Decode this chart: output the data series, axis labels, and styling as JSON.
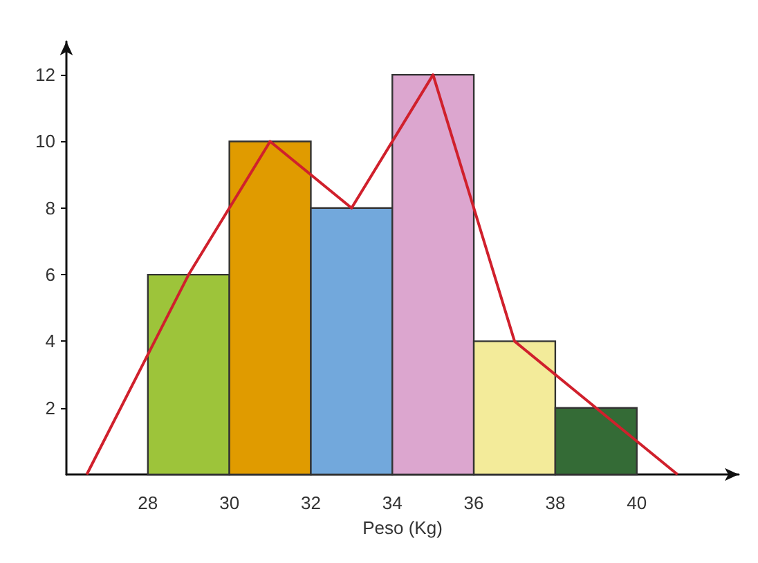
{
  "chart_data": {
    "type": "histogram",
    "xlabel": "Peso (Kg)",
    "bins": [
      28,
      30,
      32,
      34,
      36,
      38,
      40
    ],
    "values": [
      6,
      10,
      8,
      12,
      4,
      2
    ],
    "colors": [
      "#9dc43a",
      "#e09b00",
      "#72a8dc",
      "#dca6cf",
      "#f3eb9a",
      "#346b36"
    ],
    "series": [
      {
        "type": "line",
        "color": "#d0202c",
        "x": [
          26.5,
          29,
          31,
          33,
          35,
          37,
          39,
          41
        ],
        "values": [
          0,
          6,
          10,
          8,
          12,
          4,
          2,
          0
        ]
      }
    ],
    "xlim": [
      26,
      42.5
    ],
    "xticks": [
      28,
      30,
      32,
      34,
      36,
      38,
      40
    ],
    "ylim": [
      0,
      13
    ],
    "yticks": [
      2,
      4,
      6,
      8,
      10,
      12
    ],
    "grid": false,
    "marker": "none"
  }
}
